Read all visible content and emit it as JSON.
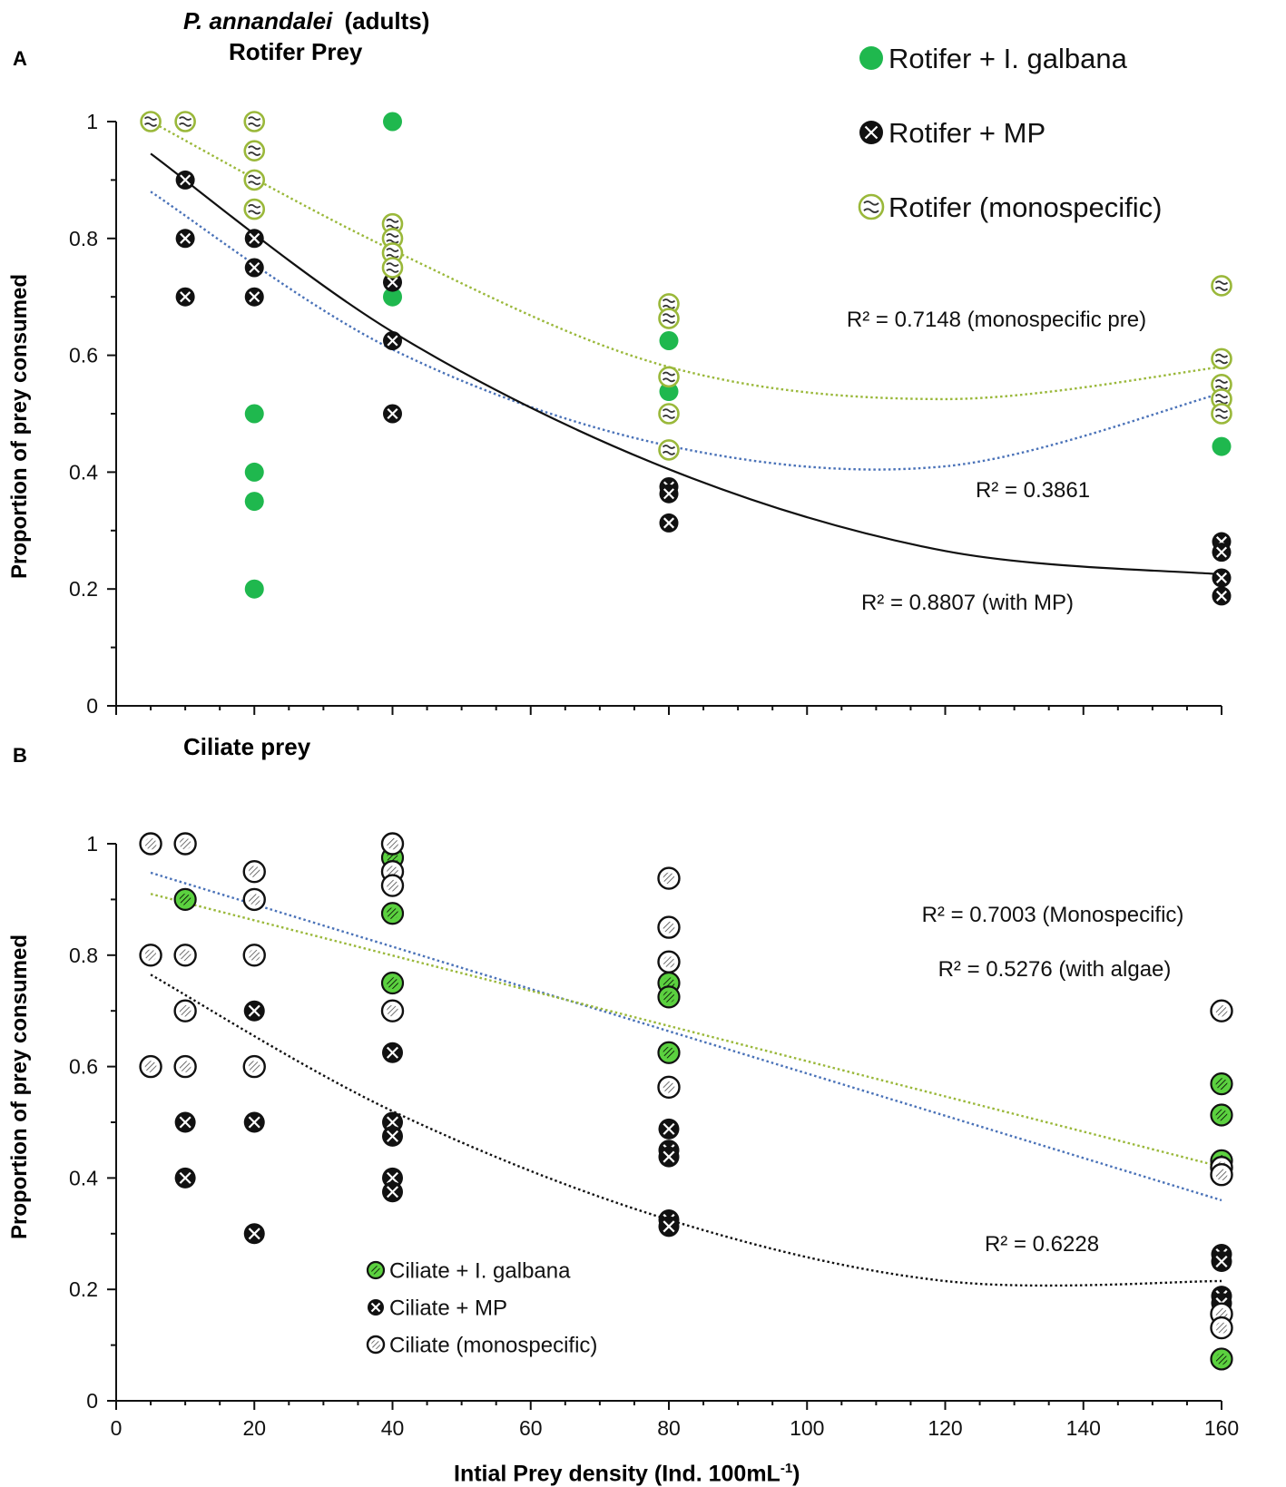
{
  "chart_data": [
    {
      "panel": "A",
      "type": "scatter",
      "title": "P. annandalei",
      "title_suffix": "(adults)",
      "subtitle": "Rotifer Prey",
      "xlabel": "",
      "ylabel": "Proportion of prey consumed",
      "xlim": [
        0,
        160
      ],
      "ylim": [
        0,
        1
      ],
      "x_ticks": [],
      "y_ticks": [
        "0",
        "0.2",
        "0.4",
        "0.6",
        "0.8",
        "1"
      ],
      "x_major_marks": [
        0,
        20,
        40,
        60,
        80,
        100,
        120,
        140,
        160
      ],
      "y_major_marks": [
        0,
        0.2,
        0.4,
        0.6,
        0.8,
        1
      ],
      "legend_position": "top-right",
      "series": [
        {
          "name": "Rotifer + I. galbana",
          "marker": "filled",
          "color": "#1fb84e",
          "points": [
            [
              20,
              0.5
            ],
            [
              20,
              0.4
            ],
            [
              20,
              0.35
            ],
            [
              20,
              0.2
            ],
            [
              40,
              1.0
            ],
            [
              40,
              0.7
            ],
            [
              80,
              0.625
            ],
            [
              80,
              0.538
            ],
            [
              160,
              0.5
            ],
            [
              160,
              0.444
            ]
          ]
        },
        {
          "name": "Rotifer + MP",
          "marker": "cross",
          "color": "#111111",
          "points": [
            [
              10,
              0.9
            ],
            [
              10,
              0.8
            ],
            [
              10,
              0.7
            ],
            [
              20,
              0.8
            ],
            [
              20,
              0.75
            ],
            [
              20,
              0.7
            ],
            [
              40,
              0.725
            ],
            [
              40,
              0.625
            ],
            [
              40,
              0.5
            ],
            [
              80,
              0.375
            ],
            [
              80,
              0.363
            ],
            [
              80,
              0.313
            ],
            [
              160,
              0.281
            ],
            [
              160,
              0.263
            ],
            [
              160,
              0.219
            ],
            [
              160,
              0.188
            ]
          ]
        },
        {
          "name": "Rotifer (monospecific)",
          "marker": "wave",
          "color": "#9ab83a",
          "points": [
            [
              5,
              1.0
            ],
            [
              10,
              1.0
            ],
            [
              20,
              1.0
            ],
            [
              20,
              0.95
            ],
            [
              20,
              0.9
            ],
            [
              20,
              0.85
            ],
            [
              40,
              0.825
            ],
            [
              40,
              0.8
            ],
            [
              40,
              0.775
            ],
            [
              40,
              0.75
            ],
            [
              80,
              0.688
            ],
            [
              80,
              0.663
            ],
            [
              80,
              0.563
            ],
            [
              80,
              0.5
            ],
            [
              80,
              0.438
            ],
            [
              160,
              0.719
            ],
            [
              160,
              0.594
            ],
            [
              160,
              0.55
            ],
            [
              160,
              0.525
            ],
            [
              160,
              0.5
            ]
          ]
        }
      ],
      "trendlines": [
        {
          "for": "Rotifer (monospecific)",
          "color": "#9ab83a",
          "style": "dotted",
          "type": "quadratic",
          "points": [
            [
              5,
              1.0
            ],
            [
              40,
              0.78
            ],
            [
              80,
              0.58
            ],
            [
              120,
              0.525
            ],
            [
              160,
              0.58
            ]
          ],
          "r2_label": "R² = 0.7148 (monospecific pre)"
        },
        {
          "for": "Rotifer + I. galbana",
          "color": "#4a72b8",
          "style": "dotted",
          "type": "quadratic",
          "points": [
            [
              5,
              0.88
            ],
            [
              40,
              0.61
            ],
            [
              80,
              0.445
            ],
            [
              120,
              0.41
            ],
            [
              160,
              0.535
            ]
          ],
          "r2_label": "R² = 0.3861"
        },
        {
          "for": "Rotifer + MP",
          "color": "#111111",
          "style": "solid",
          "type": "quadratic",
          "points": [
            [
              5,
              0.945
            ],
            [
              40,
              0.64
            ],
            [
              80,
              0.405
            ],
            [
              120,
              0.265
            ],
            [
              160,
              0.225
            ]
          ],
          "r2_label": "R² = 0.8807 (with MP)"
        }
      ]
    },
    {
      "panel": "B",
      "type": "scatter",
      "title": "Ciliate prey",
      "xlabel": "Intial Prey density (Ind. 100mL",
      "xlabel_superscript": "-1",
      "xlabel_suffix": ")",
      "ylabel": "Proportion of prey consumed",
      "xlim": [
        0,
        160
      ],
      "ylim": [
        0,
        1
      ],
      "x_ticks": [
        "0",
        "20",
        "40",
        "60",
        "80",
        "100",
        "120",
        "140",
        "160"
      ],
      "y_ticks": [
        "0",
        "0.2",
        "0.4",
        "0.6",
        "0.8",
        "1"
      ],
      "legend_position": "bottom-left",
      "series": [
        {
          "name": "Ciliate + I. galbana",
          "marker": "green-hatched",
          "color": "#5bd13f",
          "points": [
            [
              10,
              0.9
            ],
            [
              40,
              0.975
            ],
            [
              40,
              0.875
            ],
            [
              40,
              0.75
            ],
            [
              80,
              0.75
            ],
            [
              80,
              0.725
            ],
            [
              80,
              0.625
            ],
            [
              160,
              0.569
            ],
            [
              160,
              0.513
            ],
            [
              160,
              0.431
            ],
            [
              160,
              0.075
            ]
          ]
        },
        {
          "name": "Ciliate + MP",
          "marker": "cross",
          "color": "#111111",
          "points": [
            [
              10,
              0.5
            ],
            [
              10,
              0.4
            ],
            [
              20,
              0.7
            ],
            [
              20,
              0.5
            ],
            [
              20,
              0.3
            ],
            [
              40,
              0.625
            ],
            [
              40,
              0.5
            ],
            [
              40,
              0.475
            ],
            [
              40,
              0.4
            ],
            [
              40,
              0.375
            ],
            [
              80,
              0.488
            ],
            [
              80,
              0.45
            ],
            [
              80,
              0.438
            ],
            [
              80,
              0.325
            ],
            [
              80,
              0.313
            ],
            [
              160,
              0.263
            ],
            [
              160,
              0.25
            ],
            [
              160,
              0.188
            ],
            [
              160,
              0.175
            ]
          ]
        },
        {
          "name": "Ciliate (monospecific)",
          "marker": "open-hatched",
          "color": "#111111",
          "points": [
            [
              5,
              1.0
            ],
            [
              10,
              1.0
            ],
            [
              5,
              0.8
            ],
            [
              10,
              0.8
            ],
            [
              10,
              0.7
            ],
            [
              5,
              0.6
            ],
            [
              10,
              0.6
            ],
            [
              20,
              0.95
            ],
            [
              20,
              0.9
            ],
            [
              20,
              0.8
            ],
            [
              20,
              0.6
            ],
            [
              40,
              1.0
            ],
            [
              40,
              0.95
            ],
            [
              40,
              0.925
            ],
            [
              40,
              0.7
            ],
            [
              80,
              0.938
            ],
            [
              80,
              0.85
            ],
            [
              80,
              0.788
            ],
            [
              80,
              0.563
            ],
            [
              160,
              0.7
            ],
            [
              160,
              0.419
            ],
            [
              160,
              0.406
            ],
            [
              160,
              0.156
            ],
            [
              160,
              0.131
            ]
          ]
        }
      ],
      "trendlines": [
        {
          "for": "Ciliate (monospecific)",
          "color": "#4a72b8",
          "style": "dotted",
          "type": "linear",
          "points": [
            [
              5,
              0.948
            ],
            [
              160,
              0.36
            ]
          ],
          "r2_label": "R² = 0.7003 (Monospecific)"
        },
        {
          "for": "Ciliate + I. galbana",
          "color": "#9ab83a",
          "style": "dotted",
          "type": "linear",
          "points": [
            [
              5,
              0.91
            ],
            [
              160,
              0.42
            ]
          ],
          "r2_label": "R² = 0.5276 (with algae)"
        },
        {
          "for": "Ciliate + MP",
          "color": "#111111",
          "style": "dotted",
          "type": "quadratic",
          "points": [
            [
              5,
              0.765
            ],
            [
              40,
              0.52
            ],
            [
              80,
              0.325
            ],
            [
              120,
              0.215
            ],
            [
              160,
              0.215
            ]
          ],
          "r2_label": "R² = 0.6228"
        }
      ]
    }
  ]
}
